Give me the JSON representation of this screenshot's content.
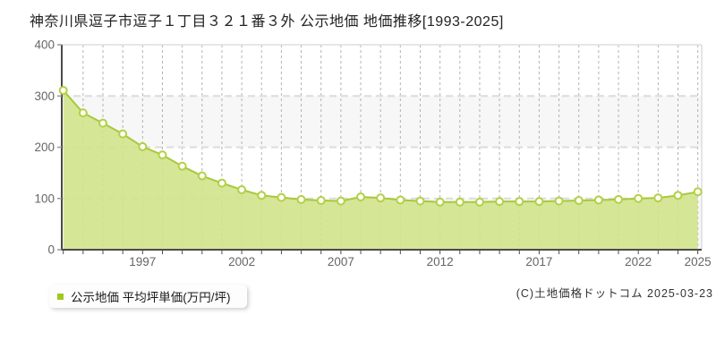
{
  "title": {
    "text": "神奈川県逗子市逗子１丁目３２１番３外 公示地価 地価推移[1993-2025]"
  },
  "legend": {
    "label": "公示地価 平均坪単価(万円/坪)"
  },
  "footer": {
    "copyright_text": "(C)土地価格ドットコム 2025-03-23"
  },
  "chart_data": {
    "type": "area",
    "title": "神奈川県逗子市逗子１丁目３２１番３外 公示地価 地価推移[1993-2025]",
    "xlabel": "",
    "ylabel": "公示地価 平均坪単価(万円/坪)",
    "x": [
      1993,
      1994,
      1995,
      1996,
      1997,
      1998,
      1999,
      2000,
      2001,
      2002,
      2003,
      2004,
      2005,
      2006,
      2007,
      2008,
      2009,
      2010,
      2011,
      2012,
      2013,
      2014,
      2015,
      2016,
      2017,
      2018,
      2019,
      2020,
      2021,
      2022,
      2023,
      2024,
      2025
    ],
    "series": [
      {
        "name": "公示地価 平均坪単価(万円/坪)",
        "values": [
          311,
          267,
          247,
          226,
          201,
          185,
          163,
          144,
          130,
          117,
          106,
          102,
          98,
          96,
          95,
          103,
          101,
          97,
          95,
          93,
          93,
          93,
          94,
          94,
          94,
          95,
          96,
          97,
          98,
          100,
          101,
          106,
          113
        ]
      }
    ],
    "ylim": [
      0,
      400
    ],
    "yticks": [
      0,
      100,
      200,
      300,
      400
    ],
    "xtick_labels": [
      1997,
      2002,
      2007,
      2012,
      2017,
      2022,
      2025
    ],
    "grid": "dashed",
    "legend_position": "bottom-left",
    "colors": {
      "area_fill": "#d2e38c",
      "line": "#a6c93b",
      "marker_fill": "#fffef6",
      "marker_stroke": "#b2d147",
      "legend_marker": "#a0c81e",
      "band_alt": "#f7f7f7",
      "band_main": "#ffffff",
      "v_grid": "#b3b3b3",
      "h_grid": "#dcdcdc",
      "axis": "#4a4a4a",
      "minor_tick": "#999999",
      "border": "#dddddd",
      "tick_label": "#666666"
    }
  }
}
